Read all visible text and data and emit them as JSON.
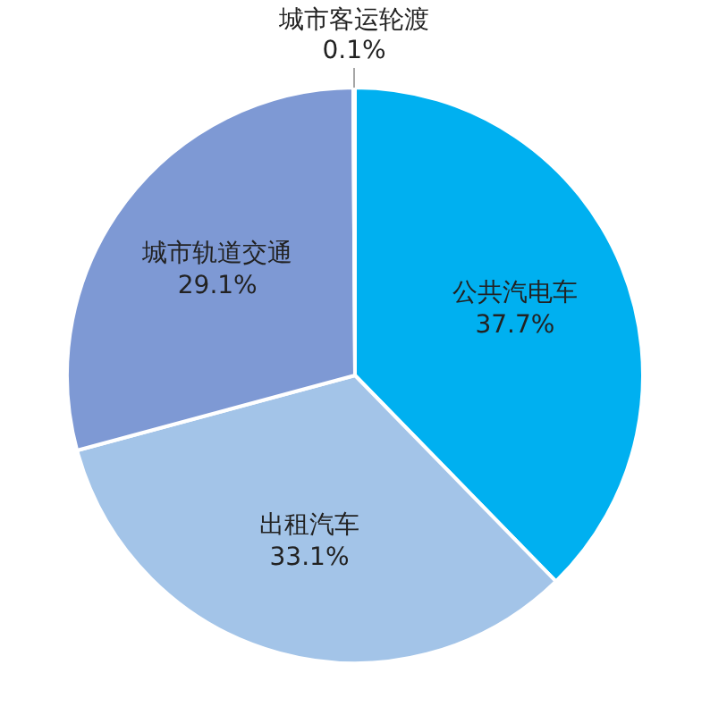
{
  "chart_data": {
    "type": "pie",
    "categories": [
      "公共汽电车",
      "出租汽车",
      "城市轨道交通",
      "城市客运轮渡"
    ],
    "values": [
      37.7,
      33.1,
      29.1,
      0.1
    ],
    "value_labels": [
      "37.7%",
      "33.1%",
      "29.1%",
      "0.1%"
    ],
    "colors": [
      "#00b0f0",
      "#a3c4e8",
      "#7e99d4",
      "#b4b4b4"
    ],
    "legend": false
  }
}
